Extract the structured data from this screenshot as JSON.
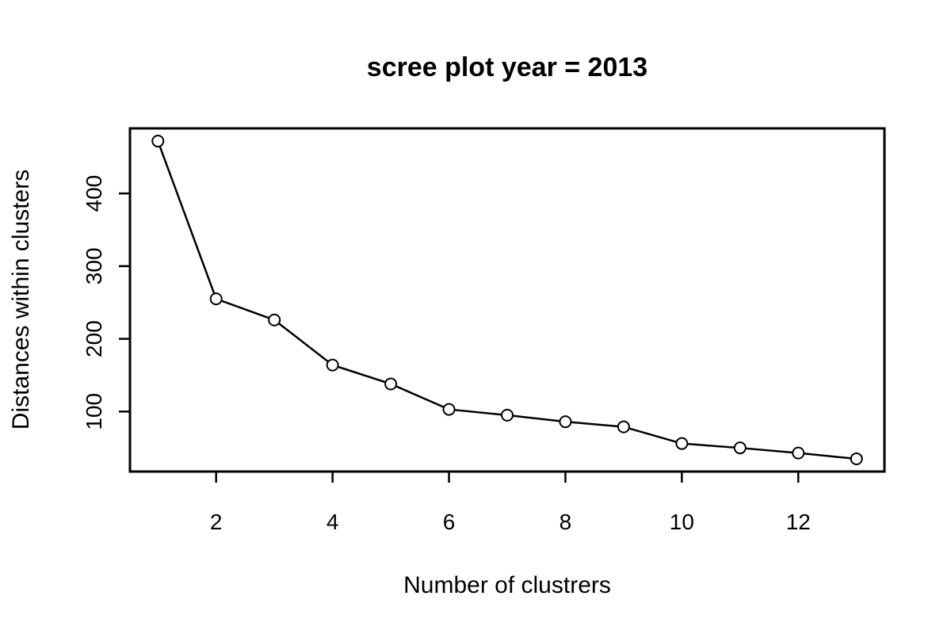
{
  "chart_data": {
    "type": "line",
    "title": "scree plot year =  2013",
    "xlabel": "Number of clustrers",
    "ylabel": "Distances within clusters",
    "x": [
      1,
      2,
      3,
      4,
      5,
      6,
      7,
      8,
      9,
      10,
      11,
      12,
      13
    ],
    "series": [
      {
        "values": [
          472,
          255,
          226,
          164,
          138,
          103,
          95,
          86,
          79,
          56,
          50,
          43,
          35
        ]
      }
    ],
    "xlim": [
      0.52,
      13.48
    ],
    "ylim": [
      17.5,
      489.5
    ],
    "xticks": [
      2,
      4,
      6,
      8,
      10,
      12
    ],
    "yticks": [
      100,
      200,
      300,
      400
    ],
    "marker": "open-circle",
    "grid": false,
    "legend": "none",
    "line_color": "#000000"
  }
}
